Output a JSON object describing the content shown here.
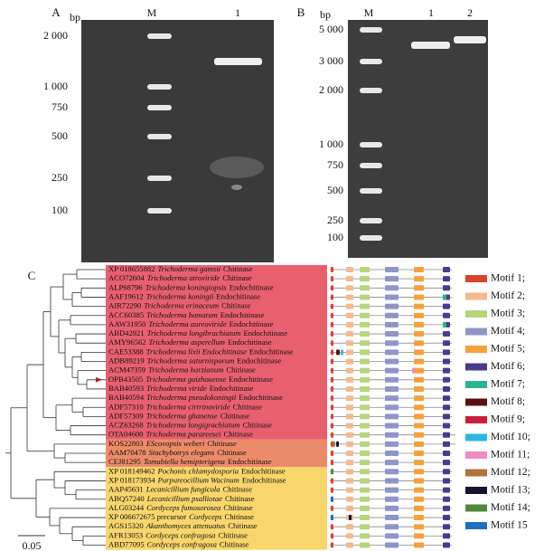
{
  "panels": [
    {
      "letter": "A",
      "unit": "bp",
      "lanes": [
        "M",
        "1"
      ],
      "markers": [
        "2 000",
        "1 000",
        "750",
        "500",
        "250",
        "100"
      ]
    },
    {
      "letter": "B",
      "unit": "bp",
      "lanes": [
        "M",
        "1",
        "2"
      ],
      "markers": [
        "5 000",
        "3 000",
        "2 000",
        "1 000",
        "750",
        "500",
        "250",
        "100"
      ]
    }
  ],
  "tree": {
    "letter": "C",
    "scale": "0.05",
    "taxa": [
      {
        "accession": "XP 018655882",
        "species": "Trichoderma gamsii",
        "suffix": "Chitinase"
      },
      {
        "accession": "ACO72604",
        "species": "Trichoderma atroviride",
        "suffix": "Chitinase"
      },
      {
        "accession": "ALP68796",
        "species": "Trichoderma koningiopsis",
        "suffix": "Endochitinase"
      },
      {
        "accession": "AAF19612",
        "species": "Trichoderma koningii",
        "suffix": "Endochitinase"
      },
      {
        "accession": "AIR72290",
        "species": "Trichoderma erinaceum",
        "suffix": "Chitinase"
      },
      {
        "accession": "ACC60385",
        "species": "Trichoderma hamatum",
        "suffix": "Endochitinase"
      },
      {
        "accession": "AAW31950",
        "species": "Trichoderma aureoviride",
        "suffix": "Endochitinase"
      },
      {
        "accession": "ABD42921",
        "species": "Trichoderma longibrachiatum",
        "suffix": "Endochitinase"
      },
      {
        "accession": "AMY96562",
        "species": "Trichoderma asperellum",
        "suffix": "Endochitinase"
      },
      {
        "accession": "CAE53388",
        "species": "Trichoderma lixii Endochitinase",
        "suffix": "Endochitinase"
      },
      {
        "accession": "ADB89219",
        "species": "Trichoderma saturnisporum",
        "suffix": "Endochitinase"
      },
      {
        "accession": "ACM47359",
        "species": "Trichoderma harzianum",
        "suffix": "Chitinase"
      },
      {
        "accession": "OPB43505",
        "species": "Trichoderma guizhouense",
        "suffix": "Endochitinase"
      },
      {
        "accession": "BAB40593",
        "species": "Trichoderma viride",
        "suffix": "Endochitinase"
      },
      {
        "accession": "BAB40594",
        "species": "Trichoderma pseudokoningii",
        "suffix": "Endochitinase"
      },
      {
        "accession": "ADF57310",
        "species": "Trichoderma cirtrinoviride",
        "suffix": "Chitinase"
      },
      {
        "accession": "ADF57309",
        "species": "Trichoderma ghanense",
        "suffix": "Chitinase"
      },
      {
        "accession": "ACZ63268",
        "species": "Trichoderma longigrachiatum",
        "suffix": "Chitinase"
      },
      {
        "accession": "OTA04600",
        "species": "Trichoderma parareesei",
        "suffix": "Chitinase"
      },
      {
        "accession": "KOS22803",
        "species": "EScovopsis weberi",
        "suffix": "Chitinase"
      },
      {
        "accession": "AAM70478",
        "species": "Stachybotrys elegans",
        "suffix": "Chitinase"
      },
      {
        "accession": "CEJ81295",
        "species": "Tomubiella hemipterigena",
        "suffix": "Endochitinase"
      },
      {
        "accession": "XP 018149462",
        "species": "Pochonis chlamydosporia",
        "suffix": "Endochitinase"
      },
      {
        "accession": "XP 018173934",
        "species": "Purpureocillium Wacinum",
        "suffix": "Endochitinase"
      },
      {
        "accession": "AAP45631",
        "species": "Lecanicillium fungicola",
        "suffix": "Chitinase"
      },
      {
        "accession": "ABQ57240",
        "species": "Lecanicillium psalliotae",
        "suffix": "Chitinase"
      },
      {
        "accession": "ALG03244",
        "species": "Cordyceps fumosorosea",
        "suffix": "Chitinase"
      },
      {
        "accession": "XP 006672675 precursor",
        "species": "Cordyceps",
        "suffix": "Chitinase"
      },
      {
        "accession": "AGS15320",
        "species": "Akanthomyces attenuatus",
        "suffix": "Chitinase"
      },
      {
        "accession": "AFR13053",
        "species": "Cordyceps confragosa",
        "suffix": "Chitinase"
      },
      {
        "accession": "ABD77095",
        "species": "Cordyceps confragosa",
        "suffix": "Chitinase"
      }
    ]
  },
  "legend": [
    {
      "label": "Motif 1;",
      "color": "#d9442b"
    },
    {
      "label": "Motif 2;",
      "color": "#f5b98c"
    },
    {
      "label": "Motif 3;",
      "color": "#b5d77a"
    },
    {
      "label": "Motif 4;",
      "color": "#8e96c8"
    },
    {
      "label": "Motif 5;",
      "color": "#f7a13a"
    },
    {
      "label": "Motif 6;",
      "color": "#4b3a8c"
    },
    {
      "label": "Motif 7;",
      "color": "#2bb58e"
    },
    {
      "label": "Motif 8;",
      "color": "#5a1010"
    },
    {
      "label": "Motif 9;",
      "color": "#c8203a"
    },
    {
      "label": "Motif 10;",
      "color": "#2bb6e6"
    },
    {
      "label": "Motif 11;",
      "color": "#f28cbf"
    },
    {
      "label": "Motif 12;",
      "color": "#b2733a"
    },
    {
      "label": "Motif 13;",
      "color": "#141430"
    },
    {
      "label": "Motif 14;",
      "color": "#4e8a3a"
    },
    {
      "label": "Motif 15",
      "color": "#1f6fbf"
    }
  ]
}
